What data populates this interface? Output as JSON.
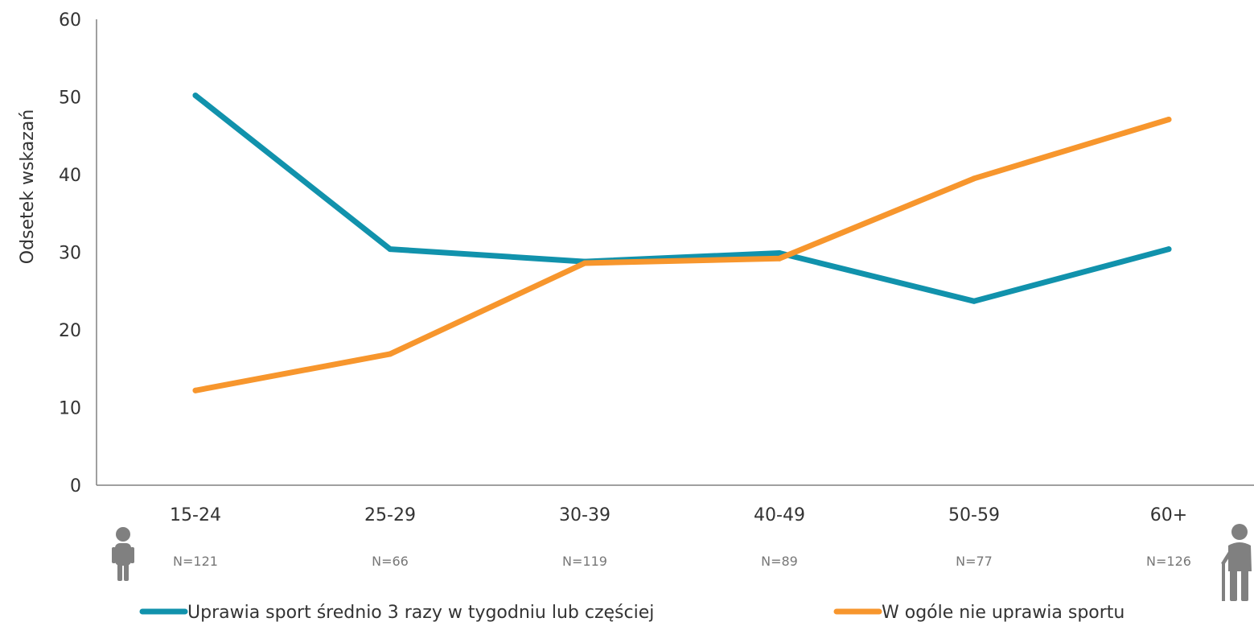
{
  "chart_data": {
    "type": "line",
    "ylabel": "Odsetek wskazań",
    "xlabel": "",
    "ylim": [
      0,
      60
    ],
    "yticks": [
      0,
      10,
      20,
      30,
      40,
      50,
      60
    ],
    "grid": false,
    "legend_position": "bottom",
    "categories": [
      "15-24",
      "25-29",
      "30-39",
      "40-49",
      "50-59",
      "60+"
    ],
    "sample_sizes": [
      "N=121",
      "N=66",
      "N=119",
      "N=89",
      "N=77",
      "N=126"
    ],
    "series": [
      {
        "name": "Uprawia sport średnio 3 razy w tygodniu lub częściej",
        "color": "#1192ac",
        "values": [
          50.2,
          30.4,
          28.8,
          29.9,
          23.7,
          30.4
        ]
      },
      {
        "name": "W ogóle nie uprawia sportu",
        "color": "#f7962d",
        "values": [
          12.2,
          16.9,
          28.6,
          29.2,
          39.5,
          47.1
        ]
      }
    ],
    "icons": [
      "young-person-icon",
      "elderly-person-icon"
    ],
    "icon_color": "#808080"
  }
}
